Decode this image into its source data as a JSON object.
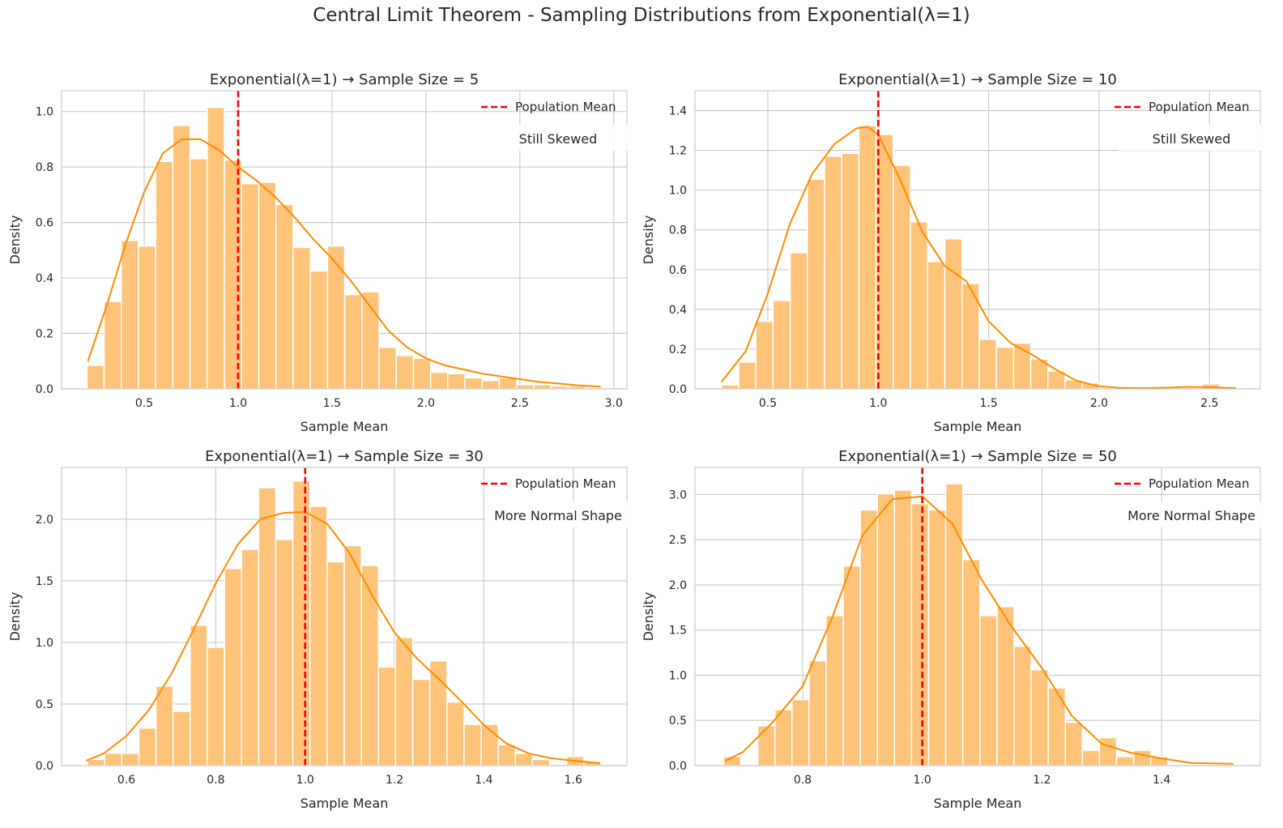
{
  "suptitle": "Central Limit Theorem - Sampling Distributions from Exponential(λ=1)",
  "colors": {
    "bar_fill": "#ffc37a",
    "bar_edge": "#ffffff",
    "kde_line": "#ff8c00",
    "mean_line": "#ff0000",
    "grid": "#cccccc",
    "spine": "#cccccc",
    "text": "#262626"
  },
  "chart_data": [
    {
      "type": "bar",
      "title": "Exponential(λ=1) → Sample Size = 5",
      "xlabel": "Sample Mean",
      "ylabel": "Density",
      "xlim": [
        0.06,
        3.07
      ],
      "ylim": [
        0,
        1.075
      ],
      "xticks": [
        0.5,
        1.0,
        1.5,
        2.0,
        2.5,
        3.0
      ],
      "xtick_labels": [
        "0.5",
        "1.0",
        "1.5",
        "2.0",
        "2.5",
        "3.0"
      ],
      "yticks": [
        0.0,
        0.2,
        0.4,
        0.6,
        0.8,
        1.0
      ],
      "ytick_labels": [
        "0.0",
        "0.2",
        "0.4",
        "0.6",
        "0.8",
        "1.0"
      ],
      "bin_start": 0.195,
      "bin_width": 0.0915,
      "values": [
        0.085,
        0.315,
        0.535,
        0.515,
        0.82,
        0.95,
        0.83,
        1.015,
        0.825,
        0.74,
        0.745,
        0.665,
        0.51,
        0.425,
        0.515,
        0.34,
        0.35,
        0.15,
        0.12,
        0.11,
        0.06,
        0.055,
        0.04,
        0.03,
        0.04,
        0.015,
        0.015,
        0.01,
        0.01,
        0.005
      ],
      "kde_x": [
        0.2,
        0.3,
        0.4,
        0.5,
        0.6,
        0.7,
        0.8,
        0.9,
        1.0,
        1.1,
        1.2,
        1.3,
        1.4,
        1.5,
        1.6,
        1.7,
        1.8,
        1.9,
        2.0,
        2.1,
        2.2,
        2.3,
        2.4,
        2.5,
        2.6,
        2.7,
        2.8,
        2.93
      ],
      "kde_y": [
        0.1,
        0.3,
        0.52,
        0.71,
        0.85,
        0.9,
        0.9,
        0.86,
        0.8,
        0.75,
        0.69,
        0.62,
        0.54,
        0.47,
        0.39,
        0.3,
        0.21,
        0.15,
        0.11,
        0.085,
        0.07,
        0.055,
        0.045,
        0.035,
        0.025,
        0.02,
        0.013,
        0.008
      ],
      "mean_line_x": 1.0,
      "legend": {
        "label": "Population Mean",
        "placement": "top-right"
      },
      "annotation": "Still Skewed"
    },
    {
      "type": "bar",
      "title": "Exponential(λ=1) → Sample Size = 10",
      "xlabel": "Sample Mean",
      "ylabel": "Density",
      "xlim": [
        0.17,
        2.73
      ],
      "ylim": [
        0,
        1.5
      ],
      "xticks": [
        0.5,
        1.0,
        1.5,
        2.0,
        2.5
      ],
      "xtick_labels": [
        "0.5",
        "1.0",
        "1.5",
        "2.0",
        "2.5"
      ],
      "yticks": [
        0.0,
        0.2,
        0.4,
        0.6,
        0.8,
        1.0,
        1.2,
        1.4
      ],
      "ytick_labels": [
        "0.0",
        "0.2",
        "0.4",
        "0.6",
        "0.8",
        "1.0",
        "1.2",
        "1.4"
      ],
      "bin_start": 0.29,
      "bin_width": 0.0778,
      "values": [
        0.02,
        0.135,
        0.34,
        0.445,
        0.685,
        1.055,
        1.17,
        1.185,
        1.325,
        1.28,
        1.125,
        0.84,
        0.64,
        0.755,
        0.53,
        0.25,
        0.21,
        0.23,
        0.15,
        0.09,
        0.045,
        0.03,
        0.005,
        0.0,
        0.0,
        0.0,
        0.0,
        0.005,
        0.025,
        0.005
      ],
      "kde_x": [
        0.29,
        0.4,
        0.5,
        0.6,
        0.7,
        0.8,
        0.9,
        0.95,
        1.0,
        1.1,
        1.2,
        1.3,
        1.4,
        1.5,
        1.6,
        1.7,
        1.8,
        1.9,
        2.0,
        2.1,
        2.2,
        2.3,
        2.4,
        2.5,
        2.62
      ],
      "kde_y": [
        0.035,
        0.19,
        0.48,
        0.83,
        1.08,
        1.23,
        1.31,
        1.32,
        1.28,
        1.05,
        0.79,
        0.62,
        0.54,
        0.34,
        0.23,
        0.17,
        0.1,
        0.04,
        0.013,
        0.005,
        0.004,
        0.006,
        0.01,
        0.008,
        0.004
      ],
      "mean_line_x": 1.0,
      "legend": {
        "label": "Population Mean",
        "placement": "top-right"
      },
      "annotation": "Still Skewed"
    },
    {
      "type": "bar",
      "title": "Exponential(λ=1) → Sample Size = 30",
      "xlabel": "Sample Mean",
      "ylabel": "Density",
      "xlim": [
        0.455,
        1.72
      ],
      "ylim": [
        0,
        2.42
      ],
      "xticks": [
        0.6,
        0.8,
        1.0,
        1.2,
        1.4,
        1.6
      ],
      "xtick_labels": [
        "0.6",
        "0.8",
        "1.0",
        "1.2",
        "1.4",
        "1.6"
      ],
      "yticks": [
        0.0,
        0.5,
        1.0,
        1.5,
        2.0
      ],
      "ytick_labels": [
        "0.0",
        "0.5",
        "1.0",
        "1.5",
        "2.0"
      ],
      "bin_start": 0.513,
      "bin_width": 0.0383,
      "values": [
        0.05,
        0.1,
        0.1,
        0.305,
        0.645,
        0.44,
        1.14,
        0.96,
        1.6,
        1.755,
        2.255,
        1.835,
        2.31,
        2.105,
        1.655,
        1.785,
        1.625,
        0.8,
        1.04,
        0.7,
        0.85,
        0.515,
        0.335,
        0.335,
        0.17,
        0.1,
        0.05,
        0.0,
        0.075,
        0.035
      ],
      "kde_x": [
        0.51,
        0.55,
        0.6,
        0.65,
        0.7,
        0.75,
        0.8,
        0.85,
        0.9,
        0.95,
        1.0,
        1.05,
        1.1,
        1.15,
        1.2,
        1.25,
        1.3,
        1.35,
        1.4,
        1.45,
        1.5,
        1.55,
        1.6,
        1.66
      ],
      "kde_y": [
        0.04,
        0.1,
        0.24,
        0.45,
        0.74,
        1.1,
        1.48,
        1.8,
        2.0,
        2.05,
        2.06,
        1.96,
        1.72,
        1.38,
        1.08,
        0.87,
        0.7,
        0.52,
        0.33,
        0.18,
        0.1,
        0.06,
        0.04,
        0.02
      ],
      "mean_line_x": 1.0,
      "legend": {
        "label": "Population Mean",
        "placement": "top-right"
      },
      "annotation": "More Normal Shape"
    },
    {
      "type": "bar",
      "title": "Exponential(λ=1) → Sample Size = 50",
      "xlabel": "Sample Mean",
      "ylabel": "Density",
      "xlim": [
        0.62,
        1.565
      ],
      "ylim": [
        0,
        3.3
      ],
      "xticks": [
        0.8,
        1.0,
        1.2,
        1.4
      ],
      "xtick_labels": [
        "0.8",
        "1.0",
        "1.2",
        "1.4"
      ],
      "yticks": [
        0.0,
        0.5,
        1.0,
        1.5,
        2.0,
        2.5,
        3.0
      ],
      "ytick_labels": [
        "0.0",
        "0.5",
        "1.0",
        "1.5",
        "2.0",
        "2.5",
        "3.0"
      ],
      "bin_start": 0.668,
      "bin_width": 0.02855,
      "values": [
        0.1,
        0.0,
        0.44,
        0.62,
        0.73,
        1.16,
        1.66,
        2.21,
        2.83,
        3.01,
        3.05,
        2.9,
        2.83,
        3.12,
        2.28,
        1.66,
        1.76,
        1.32,
        1.06,
        0.86,
        0.48,
        0.17,
        0.31,
        0.1,
        0.17,
        0.1,
        0.0,
        0.0,
        0.0,
        0.0
      ],
      "kde_x": [
        0.67,
        0.7,
        0.75,
        0.8,
        0.85,
        0.9,
        0.95,
        1.0,
        1.05,
        1.1,
        1.15,
        1.2,
        1.25,
        1.3,
        1.35,
        1.4,
        1.45,
        1.52
      ],
      "kde_y": [
        0.05,
        0.15,
        0.48,
        0.88,
        1.65,
        2.55,
        2.95,
        2.98,
        2.68,
        2.05,
        1.53,
        1.08,
        0.55,
        0.24,
        0.14,
        0.08,
        0.03,
        0.02
      ],
      "mean_line_x": 1.0,
      "legend": {
        "label": "Population Mean",
        "placement": "top-right"
      },
      "annotation": "More Normal Shape"
    }
  ]
}
